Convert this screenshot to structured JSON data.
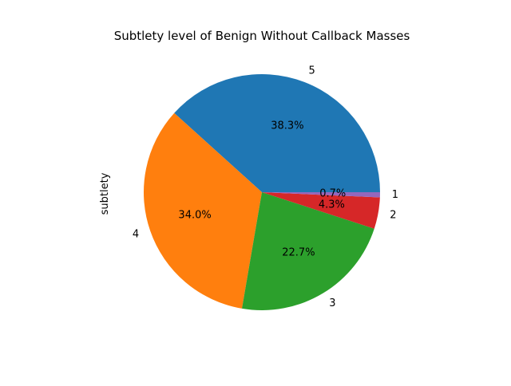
{
  "chart_data": {
    "type": "pie",
    "title": "Subtlety level of Benign Without Callback Masses",
    "ylabel": "subtlety",
    "start_angle_deg": 0,
    "direction": "counterclockwise",
    "slices": [
      {
        "label": "5",
        "percent": 38.3,
        "pct_text": "38.3%",
        "color": "#1f77b4"
      },
      {
        "label": "4",
        "percent": 34.0,
        "pct_text": "34.0%",
        "color": "#ff7f0e"
      },
      {
        "label": "3",
        "percent": 22.7,
        "pct_text": "22.7%",
        "color": "#2ca02c"
      },
      {
        "label": "2",
        "percent": 4.3,
        "pct_text": "4.3%",
        "color": "#d62728"
      },
      {
        "label": "1",
        "percent": 0.7,
        "pct_text": "0.7%",
        "color": "#9467bd"
      }
    ]
  }
}
